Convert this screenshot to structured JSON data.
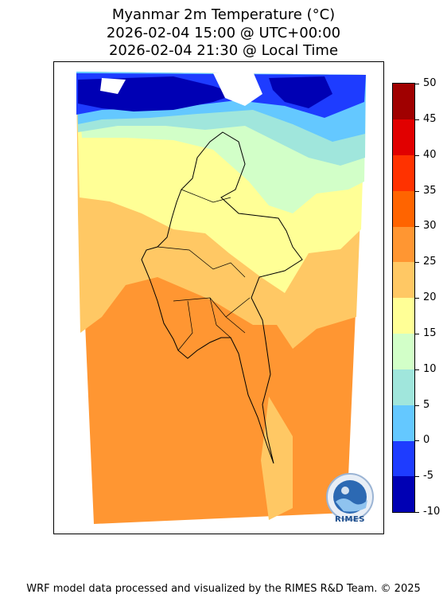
{
  "title": {
    "line1": "Myanmar 2m Temperature (°C)",
    "line2": "2026-02-04 15:00 @ UTC+00:00",
    "line3": "2026-02-04 21:30 @ Local Time"
  },
  "colorbar": {
    "levels": [
      -10,
      -5,
      0,
      5,
      10,
      15,
      20,
      25,
      30,
      35,
      40,
      45,
      50
    ],
    "labels": [
      "-10",
      "-5",
      "0",
      "5",
      "10",
      "15",
      "20",
      "25",
      "30",
      "35",
      "40",
      "45",
      "50"
    ],
    "colors": [
      "#0000b4",
      "#1e3cff",
      "#64c8ff",
      "#a0e6dc",
      "#d2ffc8",
      "#ffff96",
      "#ffc864",
      "#ff9632",
      "#ff6400",
      "#ff3200",
      "#e10000",
      "#a00000"
    ]
  },
  "logo": {
    "text": "RIMES"
  },
  "footer": "WRF model data processed and visualized by the RIMES R&D Team. © 2025"
}
